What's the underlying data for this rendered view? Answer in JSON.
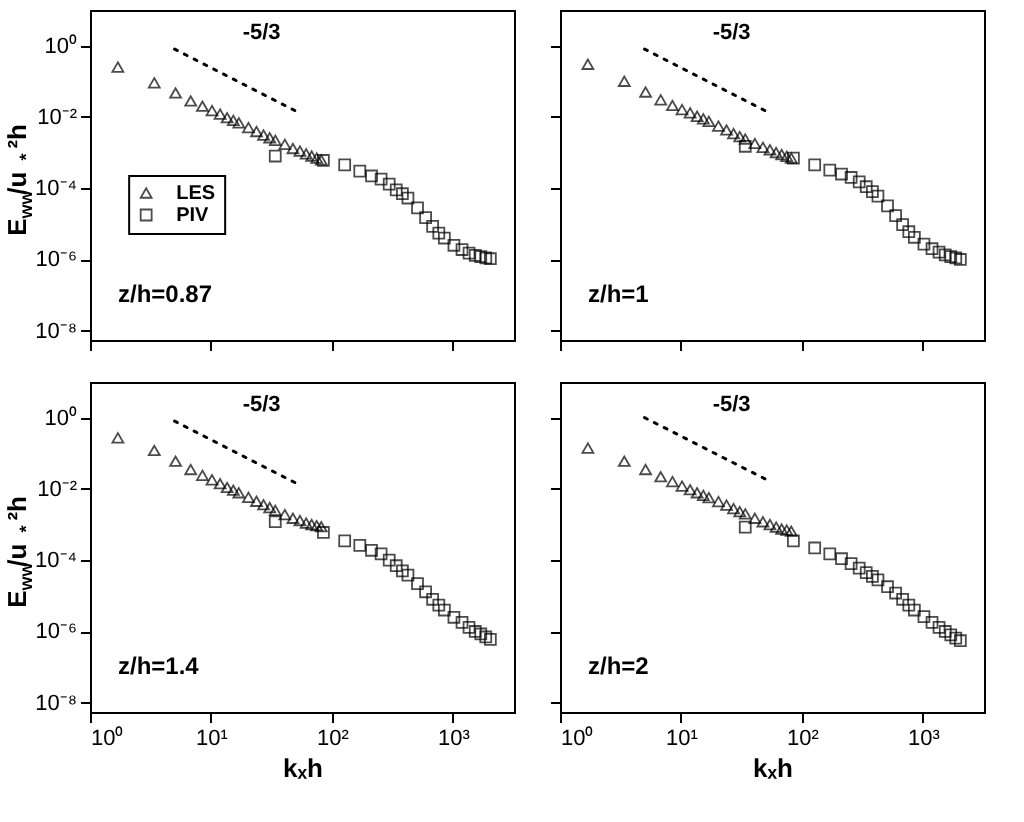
{
  "chart_data": [
    {
      "type": "scatter",
      "ylabel": "E$_{ww}$/u$_{*}$²h",
      "xlim": [
        1,
        3200
      ],
      "ylim": [
        5.5e-09,
        10
      ],
      "xticks": [
        {
          "value": 1,
          "label": null
        },
        {
          "value": 10,
          "label": null
        },
        {
          "value": 100,
          "label": null
        },
        {
          "value": 1000,
          "label": null
        }
      ],
      "yticks": [
        {
          "value": 1,
          "label": "10⁰"
        },
        {
          "value": 0.01,
          "label": "10⁻²"
        },
        {
          "value": 0.0001,
          "label": "10⁻⁴"
        },
        {
          "value": 1e-06,
          "label": "10⁻⁶"
        },
        {
          "value": 1e-08,
          "label": "10⁻⁸"
        }
      ],
      "log": "xy",
      "grid": false,
      "legend": "left",
      "tick_labels": "y",
      "annotations": [
        "-5/3",
        "z/h=0.87"
      ],
      "series": [
        {
          "name": "LES",
          "color": "#000000",
          "marker": "triangle",
          "x": [
            1.7,
            3.4,
            5.1,
            6.8,
            8.5,
            10.2,
            11.9,
            13.6,
            15.3,
            17,
            20.4,
            23.8,
            27.2,
            30.6,
            34,
            40.8,
            47.6,
            54.4,
            61.2,
            68,
            74.8,
            81.6
          ],
          "values": [
            0.25,
            0.09,
            0.047,
            0.028,
            0.02,
            0.015,
            0.012,
            0.0095,
            0.008,
            0.0068,
            0.005,
            0.0039,
            0.0031,
            0.0026,
            0.0022,
            0.0017,
            0.0013,
            0.0011,
            0.00092,
            0.0008,
            0.0007,
            0.00062
          ]
        },
        {
          "name": "PIV",
          "color": "#000000",
          "marker": "square",
          "x": [
            34,
            85,
            127.5,
            170,
            212.5,
            255,
            297.5,
            340,
            382.5,
            425,
            510,
            595,
            680,
            765,
            850,
            1020,
            1190,
            1360,
            1530,
            1700,
            1870,
            2040
          ],
          "values": [
            0.0008,
            0.0006,
            0.00045,
            0.0003,
            0.00022,
            0.00018,
            0.00013,
            9e-05,
            7e-05,
            5.3e-05,
            2.8e-05,
            1.5e-05,
            8.5e-06,
            5.5e-06,
            4e-06,
            2.5e-06,
            1.9e-06,
            1.5e-06,
            1.3e-06,
            1.2e-06,
            1.1e-06,
            1.05e-06
          ]
        },
        {
          "type": "line",
          "line_style": "dotted",
          "color": "#000000",
          "x": [
            5,
            55
          ],
          "values": [
            0.8,
            0.0125
          ]
        }
      ]
    },
    {
      "type": "scatter",
      "xlim": [
        1,
        3200
      ],
      "ylim": [
        5.5e-09,
        10
      ],
      "xticks": [
        {
          "value": 1,
          "label": null
        },
        {
          "value": 10,
          "label": null
        },
        {
          "value": 100,
          "label": null
        },
        {
          "value": 1000,
          "label": null
        }
      ],
      "yticks": [
        {
          "value": 1,
          "label": null
        },
        {
          "value": 0.01,
          "label": null
        },
        {
          "value": 0.0001,
          "label": null
        },
        {
          "value": 1e-06,
          "label": null
        },
        {
          "value": 1e-08,
          "label": null
        }
      ],
      "log": "xy",
      "grid": false,
      "tick_labels": false,
      "annotations": [
        "-5/3",
        "z/h=1"
      ],
      "series": [
        {
          "color": "#000000",
          "marker": "triangle",
          "x": [
            1.7,
            3.4,
            5.1,
            6.8,
            8.5,
            10.2,
            11.9,
            13.6,
            15.3,
            17,
            20.4,
            23.8,
            27.2,
            30.6,
            34,
            40.8,
            47.6,
            54.4,
            61.2,
            68,
            74.8,
            81.6
          ],
          "values": [
            0.3,
            0.1,
            0.05,
            0.03,
            0.021,
            0.016,
            0.013,
            0.0104,
            0.0088,
            0.0075,
            0.0055,
            0.0043,
            0.0034,
            0.0028,
            0.0024,
            0.0018,
            0.0014,
            0.0012,
            0.001,
            0.00088,
            0.00078,
            0.0007
          ]
        },
        {
          "color": "#000000",
          "marker": "square",
          "x": [
            34,
            85,
            127.5,
            170,
            212.5,
            255,
            297.5,
            340,
            382.5,
            425,
            510,
            595,
            680,
            765,
            850,
            1020,
            1190,
            1360,
            1530,
            1700,
            1870,
            2040
          ],
          "values": [
            0.0015,
            0.0007,
            0.00045,
            0.00032,
            0.00025,
            0.0002,
            0.00015,
            0.00011,
            8e-05,
            6e-05,
            3.2e-05,
            1.7e-05,
            9.5e-06,
            6e-06,
            4.2e-06,
            2.7e-06,
            2e-06,
            1.6e-06,
            1.35e-06,
            1.2e-06,
            1.1e-06,
            1e-06
          ]
        },
        {
          "type": "line",
          "line_style": "dotted",
          "color": "#000000",
          "x": [
            5,
            55
          ],
          "values": [
            0.8,
            0.0125
          ]
        }
      ]
    },
    {
      "type": "scatter",
      "xlabel": "kₓh",
      "ylabel": "E$_{ww}$/u$_{*}$²h",
      "xlim": [
        1,
        3200
      ],
      "ylim": [
        5.5e-09,
        10
      ],
      "xticks": [
        {
          "value": 1,
          "label": "10⁰"
        },
        {
          "value": 10,
          "label": "10¹"
        },
        {
          "value": 100,
          "label": "10²"
        },
        {
          "value": 1000,
          "label": "10³"
        }
      ],
      "yticks": [
        {
          "value": 1,
          "label": "10⁰"
        },
        {
          "value": 0.01,
          "label": "10⁻²"
        },
        {
          "value": 0.0001,
          "label": "10⁻⁴"
        },
        {
          "value": 1e-06,
          "label": "10⁻⁶"
        },
        {
          "value": 1e-08,
          "label": "10⁻⁸"
        }
      ],
      "log": "xy",
      "grid": false,
      "annotations": [
        "-5/3",
        "z/h=1.4"
      ],
      "series": [
        {
          "color": "#000000",
          "marker": "triangle",
          "x": [
            1.7,
            3.4,
            5.1,
            6.8,
            8.5,
            10.2,
            11.9,
            13.6,
            15.3,
            17,
            20.4,
            23.8,
            27.2,
            30.6,
            34,
            40.8,
            47.6,
            54.4,
            61.2,
            68,
            74.8,
            81.6
          ],
          "values": [
            0.27,
            0.12,
            0.06,
            0.035,
            0.024,
            0.018,
            0.014,
            0.011,
            0.0092,
            0.0078,
            0.0058,
            0.0045,
            0.0036,
            0.003,
            0.0025,
            0.0019,
            0.0015,
            0.0013,
            0.0011,
            0.001,
            0.00093,
            0.00087
          ]
        },
        {
          "color": "#000000",
          "marker": "square",
          "x": [
            34,
            85,
            127.5,
            170,
            212.5,
            255,
            297.5,
            340,
            382.5,
            425,
            510,
            595,
            680,
            765,
            850,
            1020,
            1190,
            1360,
            1530,
            1700,
            1870,
            2040
          ],
          "values": [
            0.0012,
            0.0006,
            0.00035,
            0.00026,
            0.00019,
            0.00015,
            0.0001,
            7e-05,
            5e-05,
            3.8e-05,
            2.2e-05,
            1.3e-05,
            8e-06,
            5.5e-06,
            4e-06,
            2.5e-06,
            1.8e-06,
            1.3e-06,
            1e-06,
            8.5e-07,
            7e-07,
            6e-07
          ]
        },
        {
          "type": "line",
          "line_style": "dotted",
          "color": "#000000",
          "x": [
            5,
            55
          ],
          "values": [
            0.8,
            0.0125
          ]
        }
      ]
    },
    {
      "type": "scatter",
      "xlabel": "kₓh",
      "xlim": [
        1,
        3200
      ],
      "ylim": [
        5.5e-09,
        10
      ],
      "xticks": [
        {
          "value": 1,
          "label": "10⁰"
        },
        {
          "value": 10,
          "label": "10¹"
        },
        {
          "value": 100,
          "label": "10²"
        },
        {
          "value": 1000,
          "label": "10³"
        }
      ],
      "yticks": [
        {
          "value": 1,
          "label": null
        },
        {
          "value": 0.01,
          "label": null
        },
        {
          "value": 0.0001,
          "label": null
        },
        {
          "value": 1e-06,
          "label": null
        },
        {
          "value": 1e-08,
          "label": null
        }
      ],
      "log": "xy",
      "grid": false,
      "tick_labels": "x",
      "annotations": [
        "-5/3",
        "z/h=2"
      ],
      "series": [
        {
          "color": "#000000",
          "marker": "triangle",
          "x": [
            1.7,
            3.4,
            5.1,
            6.8,
            8.5,
            10.2,
            11.9,
            13.6,
            15.3,
            17,
            20.4,
            23.8,
            27.2,
            30.6,
            34,
            40.8,
            47.6,
            54.4,
            61.2,
            68,
            74.8,
            81.6
          ],
          "values": [
            0.14,
            0.06,
            0.035,
            0.022,
            0.016,
            0.012,
            0.0095,
            0.0078,
            0.0066,
            0.0057,
            0.0044,
            0.0035,
            0.0028,
            0.0023,
            0.002,
            0.0015,
            0.0012,
            0.001,
            0.00085,
            0.00075,
            0.0007,
            0.00065
          ]
        },
        {
          "color": "#000000",
          "marker": "square",
          "x": [
            34,
            85,
            127.5,
            170,
            212.5,
            255,
            297.5,
            340,
            382.5,
            425,
            510,
            595,
            680,
            765,
            850,
            1020,
            1190,
            1360,
            1530,
            1700,
            1870,
            2040
          ],
          "values": [
            0.00085,
            0.00035,
            0.00022,
            0.00015,
            0.00011,
            8e-05,
            6e-05,
            4.5e-05,
            3.5e-05,
            2.8e-05,
            1.8e-05,
            1.2e-05,
            8e-06,
            5.5e-06,
            4e-06,
            2.6e-06,
            1.8e-06,
            1.3e-06,
            1e-06,
            8e-07,
            6.5e-07,
            5.5e-07
          ]
        },
        {
          "type": "line",
          "line_style": "dotted",
          "color": "#000000",
          "x": [
            5,
            55
          ],
          "values": [
            1.0,
            0.016
          ]
        }
      ]
    }
  ]
}
